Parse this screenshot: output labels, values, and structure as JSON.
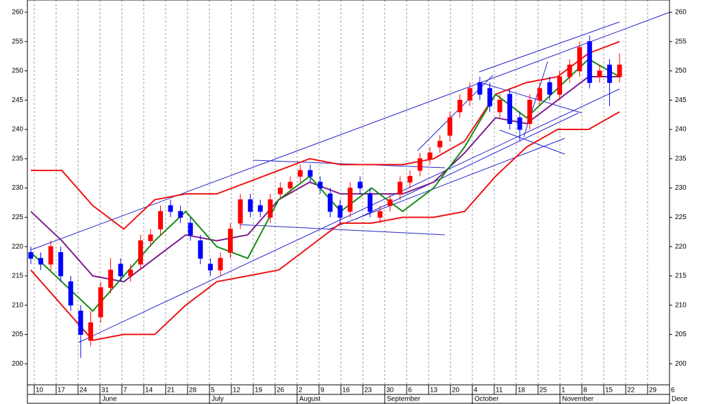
{
  "chart_data": {
    "type": "candlestick",
    "categories": [
      "10",
      "17",
      "24",
      "31",
      "7",
      "14",
      "21",
      "28",
      "5",
      "12",
      "19",
      "26",
      "2",
      "9",
      "16",
      "23",
      "30",
      "6",
      "13",
      "20",
      "4",
      "11",
      "18",
      "25",
      "1",
      "8",
      "15",
      "22",
      "29",
      "6"
    ],
    "months": [
      null,
      null,
      null,
      "June",
      null,
      null,
      null,
      null,
      "July",
      null,
      null,
      null,
      "August",
      null,
      null,
      null,
      "September",
      null,
      null,
      null,
      "October",
      null,
      null,
      null,
      "November",
      null,
      null,
      null,
      null,
      "Dece"
    ],
    "ylim": [
      196.4,
      262.1
    ],
    "yticks": [
      200,
      205,
      210,
      215,
      220,
      225,
      230,
      235,
      240,
      245,
      250,
      255,
      260
    ],
    "grid": true,
    "up_color": "#ff0000",
    "down_color": "#0000ff",
    "open": [
      219,
      218,
      217,
      219,
      214,
      209,
      204,
      208,
      213,
      217,
      215,
      217,
      221,
      223,
      227,
      226,
      224,
      221,
      217,
      216,
      219,
      224,
      228,
      227,
      225,
      229,
      230,
      232,
      233,
      231,
      229,
      227,
      226,
      231,
      229,
      225,
      227,
      229,
      231,
      233,
      235,
      237,
      239,
      243,
      245,
      248,
      247,
      243,
      246,
      242,
      241,
      245,
      248,
      246,
      249,
      250,
      255,
      249,
      251,
      249
    ],
    "high": [
      220,
      219,
      221,
      220,
      215,
      210,
      209,
      214,
      218,
      218,
      217,
      222,
      223,
      227,
      228,
      227,
      225,
      222,
      218,
      219,
      224,
      229,
      229,
      228,
      229,
      231,
      232,
      234,
      234,
      232,
      230,
      228,
      231,
      232,
      230,
      227,
      229,
      232,
      233,
      236,
      237,
      239,
      243,
      246,
      248,
      249,
      248,
      246,
      247,
      243,
      246,
      248,
      249,
      250,
      252,
      255,
      256,
      251,
      252,
      253
    ],
    "low": [
      217,
      216,
      216,
      214,
      209,
      201,
      203,
      207,
      212,
      214,
      214,
      216,
      220,
      222,
      225,
      224,
      221,
      217,
      215,
      215,
      218,
      223,
      225,
      225,
      224,
      228,
      229,
      231,
      231,
      229,
      225,
      224,
      225,
      229,
      225,
      224,
      226,
      228,
      230,
      232,
      234,
      236,
      238,
      242,
      244,
      245,
      243,
      242,
      240,
      238,
      240,
      244,
      245,
      245,
      248,
      249,
      247,
      248,
      244,
      248
    ],
    "close": [
      218,
      217,
      220,
      215,
      210,
      205,
      207,
      213,
      216,
      215,
      216,
      221,
      222,
      226,
      226,
      225,
      222,
      218,
      216,
      218,
      223,
      228,
      226,
      226,
      228,
      230,
      231,
      233,
      232,
      230,
      226,
      225,
      230,
      230,
      226,
      226,
      228,
      231,
      232,
      235,
      236,
      238,
      242,
      245,
      247,
      246,
      244,
      245,
      241,
      240,
      245,
      247,
      246,
      249,
      251,
      254,
      248,
      250,
      248,
      251
    ],
    "lines": [
      {
        "color": "#ee1111",
        "values": [
          233,
          233,
          227,
          223,
          228,
          229,
          229,
          231,
          233,
          235,
          234,
          234,
          234,
          235,
          238,
          246,
          248,
          249,
          253,
          255
        ]
      },
      {
        "color": "#ee1111",
        "values": [
          216,
          210,
          204,
          205,
          205,
          210,
          214,
          215,
          216,
          220,
          224,
          224,
          225,
          225,
          226,
          232,
          237,
          240,
          240,
          243
        ]
      },
      {
        "color": "#7a1a8a",
        "values": [
          226,
          221,
          215,
          214,
          218,
          222,
          221,
          222,
          228,
          231,
          229,
          229,
          229,
          231,
          236,
          242,
          241,
          245,
          249,
          249
        ]
      },
      {
        "color": "#118811",
        "values": [
          219,
          214,
          209,
          215,
          221,
          226,
          220,
          218,
          228,
          232,
          226,
          230,
          226,
          230,
          237,
          246,
          242,
          247,
          252,
          249
        ]
      }
    ]
  }
}
